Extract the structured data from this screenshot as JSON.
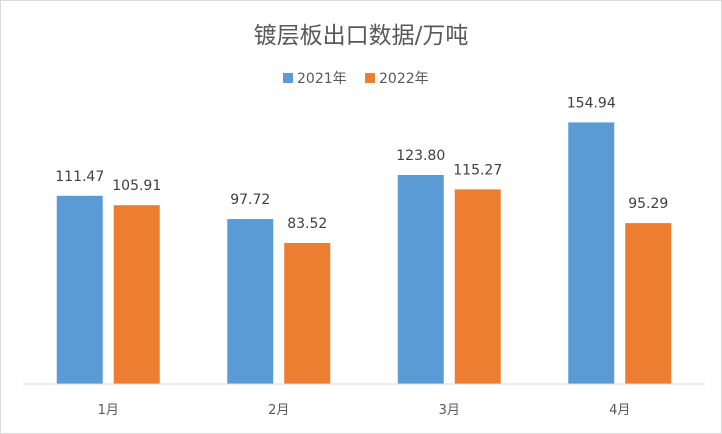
{
  "chart_data": {
    "type": "bar",
    "title": "镀层板出口数据/万吨",
    "categories": [
      "1月",
      "2月",
      "3月",
      "4月"
    ],
    "series": [
      {
        "name": "2021年",
        "color": "#5b9bd5",
        "values": [
          111.47,
          97.72,
          123.8,
          154.94
        ]
      },
      {
        "name": "2022年",
        "color": "#ed7d31",
        "values": [
          105.91,
          83.52,
          115.27,
          95.29
        ]
      }
    ],
    "ylim": [
      0,
      170
    ],
    "grid": false,
    "legend_position": "top-center",
    "data_labels": true,
    "xlabel": "",
    "ylabel": ""
  }
}
